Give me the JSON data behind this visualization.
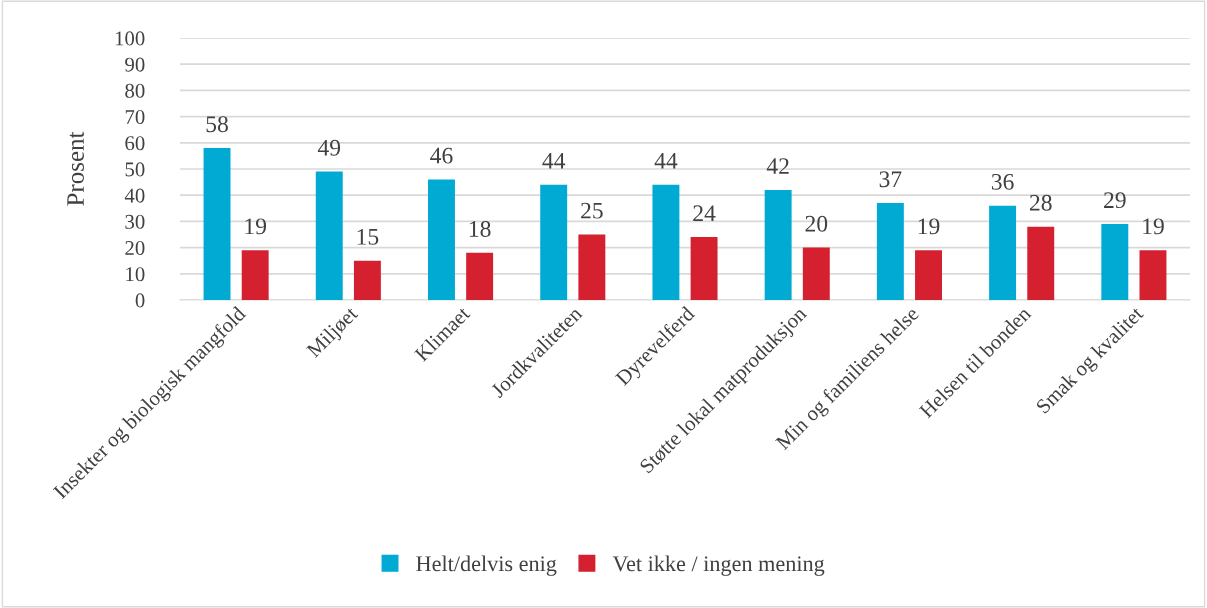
{
  "chart_data": {
    "type": "bar",
    "ylabel": "Prosent",
    "categories": [
      "Insekter og biologisk mangfold",
      "Miljøet",
      "Klimaet",
      "Jordkvaliteten",
      "Dyrevelferd",
      "Støtte lokal matproduksjon",
      "Min og familiens helse",
      "Helsen til bonden",
      "Smak og kvalitet"
    ],
    "series": [
      {
        "name": "Helt/delvis enig",
        "color": "#00aad2",
        "values": [
          58,
          49,
          46,
          44,
          44,
          42,
          37,
          36,
          29
        ]
      },
      {
        "name": "Vet ikke / ingen mening",
        "color": "#d4202f",
        "values": [
          19,
          15,
          18,
          25,
          24,
          20,
          19,
          28,
          19
        ]
      }
    ],
    "ylim": [
      0,
      100
    ],
    "yticks": [
      0,
      10,
      20,
      30,
      40,
      50,
      60,
      70,
      80,
      90,
      100
    ],
    "grid": "y",
    "legend": "bottom",
    "data_labels": true
  }
}
